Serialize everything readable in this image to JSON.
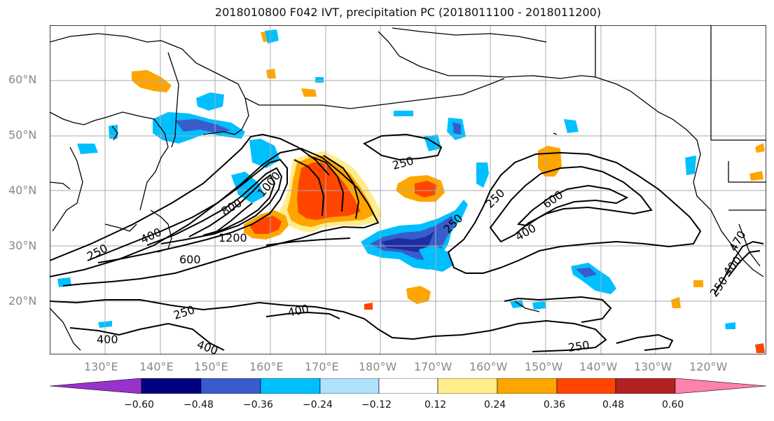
{
  "title": "2018010800 F042 IVT, precipitation PC (2018011100 - 2018011200)",
  "map": {
    "lat_labels": [
      "60°N",
      "50°N",
      "40°N",
      "30°N",
      "20°N"
    ],
    "lon_labels": [
      "130°E",
      "140°E",
      "150°E",
      "160°E",
      "170°E",
      "180°W",
      "170°W",
      "160°W",
      "150°W",
      "140°W",
      "130°W",
      "120°W"
    ],
    "contour_labels": {
      "c250_nw": "250",
      "c250_mid": "250",
      "c250_e": "250",
      "c250_sw": "250",
      "c250_s": "250",
      "c250_far_e": "250",
      "c250_west": "250",
      "c400_w": "400",
      "c400_s": "400",
      "c400_s2": "400",
      "c400_e": "400",
      "c400_sw": "400",
      "c400_far_e": "400",
      "c600_w": "600",
      "c600_e": "600",
      "c800": "800",
      "c1000": "1000",
      "c1200": "1200",
      "c470": "470"
    }
  },
  "colorbar": {
    "ticks": [
      "−0.60",
      "−0.48",
      "−0.36",
      "−0.24",
      "−0.12",
      "0.12",
      "0.24",
      "0.36",
      "0.48",
      "0.60"
    ],
    "colors": [
      "#9932CC",
      "#000080",
      "#3A5CCB",
      "#00BFFF",
      "#B0E2FF",
      "#FFFFFF",
      "#FFEC8B",
      "#FFA500",
      "#FF4500",
      "#B22222",
      "#FF82AB"
    ]
  }
}
